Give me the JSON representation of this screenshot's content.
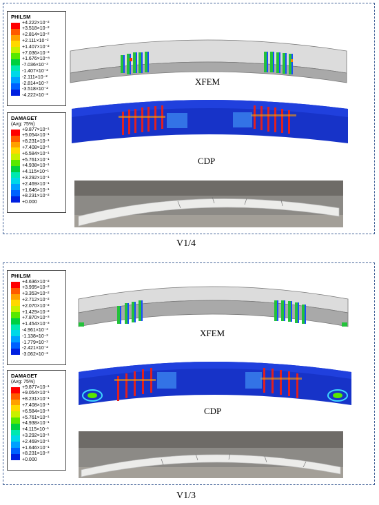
{
  "panels": [
    {
      "label": "V1/4",
      "phi_legend": {
        "title": "PHILSM",
        "values": [
          "+4.222×10⁻²",
          "+3.518×10⁻²",
          "+2.814×10⁻²",
          "+2.111×10⁻²",
          "+1.407×10⁻²",
          "+7.036×10⁻³",
          "+1.676×10⁻⁸",
          "-7.036×10⁻³",
          "-1.407×10⁻²",
          "-2.111×10⁻²",
          "-2.814×10⁻²",
          "-3.518×10⁻²",
          "-4.222×10⁻²"
        ],
        "colors": [
          "#ff0000",
          "#ff5a00",
          "#ffa000",
          "#ffd800",
          "#c8f000",
          "#58e800",
          "#00d040",
          "#00e8b0",
          "#00d8e8",
          "#00a0ff",
          "#0060ff",
          "#0020e0"
        ]
      },
      "dmg_legend": {
        "title": "DAMAGET",
        "subtitle": "(Avg: 75%)",
        "values": [
          "+9.877×10⁻¹",
          "+9.054×10⁻¹",
          "+8.231×10⁻¹",
          "+7.408×10⁻¹",
          "+6.584×10⁻¹",
          "+5.761×10⁻¹",
          "+4.938×10⁻¹",
          "+4.115×10⁻¹",
          "+3.292×10⁻¹",
          "+2.469×10⁻¹",
          "+1.646×10⁻¹",
          "+8.231×10⁻²",
          "+0.000"
        ],
        "colors": [
          "#ff0000",
          "#ff5a00",
          "#ffa000",
          "#ffd800",
          "#c8f000",
          "#58e800",
          "#00d040",
          "#00e8b0",
          "#00d8e8",
          "#00a0ff",
          "#0060ff",
          "#0020e0"
        ]
      },
      "xfem_label": "XFEM",
      "cdp_label": "CDP"
    },
    {
      "label": "V1/3",
      "phi_legend": {
        "title": "PHILSM",
        "values": [
          "+4.636×10⁻²",
          "+3.995×10⁻²",
          "+3.353×10⁻²",
          "+2.712×10⁻²",
          "+2.070×10⁻²",
          "+1.429×10⁻²",
          "+7.870×10⁻³",
          "+1.454×10⁻³",
          "-4.961×10⁻³",
          "-1.138×10⁻²",
          "-1.779×10⁻²",
          "-2.421×10⁻²",
          "-3.062×10⁻²"
        ],
        "colors": [
          "#ff0000",
          "#ff5a00",
          "#ffa000",
          "#ffd800",
          "#c8f000",
          "#58e800",
          "#00d040",
          "#00e8b0",
          "#00d8e8",
          "#00a0ff",
          "#0060ff",
          "#0020e0"
        ]
      },
      "dmg_legend": {
        "title": "DAMAGET",
        "subtitle": "(Avg: 75%)",
        "values": [
          "+9.877×10⁻¹",
          "+9.054×10⁻¹",
          "+8.231×10⁻¹",
          "+7.408×10⁻¹",
          "+6.584×10⁻¹",
          "+5.761×10⁻¹",
          "+4.938×10⁻¹",
          "+4.115×10⁻¹",
          "+3.292×10⁻¹",
          "+2.469×10⁻¹",
          "+1.646×10⁻¹",
          "+8.231×10⁻²",
          "+0.000"
        ],
        "colors": [
          "#ff0000",
          "#ff5a00",
          "#ffa000",
          "#ffd800",
          "#c8f000",
          "#58e800",
          "#00d040",
          "#00e8b0",
          "#00d8e8",
          "#00a0ff",
          "#0060ff",
          "#0020e0"
        ]
      },
      "xfem_label": "XFEM",
      "cdp_label": "CDP"
    }
  ]
}
